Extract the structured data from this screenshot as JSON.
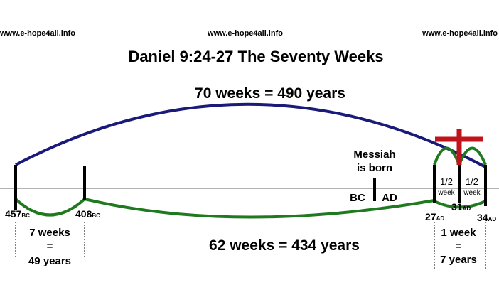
{
  "header": {
    "links": [
      "www.e-hope4all.info",
      "www.e-hope4all.info",
      "www.e-hope4all.info"
    ]
  },
  "title": "Daniel 9:24-27  The Seventy Weeks",
  "top_label": "70 weeks = 490 years",
  "bottom_label": "62 weeks = 434 years",
  "messiah": {
    "label": [
      "Messiah",
      "is born"
    ],
    "before": "BC",
    "after": "AD"
  },
  "dates": [
    {
      "year": "457",
      "era": "BC"
    },
    {
      "year": "408",
      "era": "BC"
    },
    {
      "year": "27",
      "era": "AD"
    },
    {
      "year": "31",
      "era": "AD"
    },
    {
      "year": "34",
      "era": "AD"
    }
  ],
  "first_period": [
    "7 weeks",
    "=",
    "49 years"
  ],
  "last_period": [
    "1 week",
    "=",
    "7 years"
  ],
  "halves": [
    [
      "1/2",
      "week"
    ],
    [
      "1/2",
      "week"
    ]
  ]
}
